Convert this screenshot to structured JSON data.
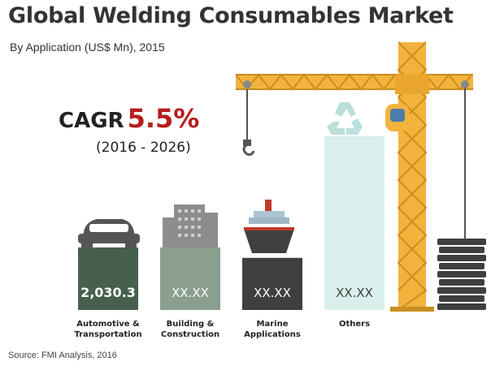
{
  "title": "Global Welding Consumables Market",
  "subtitle": "By Application (US$ Mn), 2015",
  "cagr": {
    "label": "CAGR",
    "value": "5.5%",
    "period": "(2016 - 2026)"
  },
  "source": "Source: FMI Analysis, 2016",
  "colors": {
    "automotive": "#46604d",
    "building": "#8a9f8d",
    "marine": "#3f3f3f",
    "others": "#d9efeb",
    "crane": "#f2b33d",
    "cagr_accent": "#b71c1c"
  },
  "icons": [
    "car-icon",
    "buildings-icon",
    "ship-icon",
    "recycle-icon",
    "crane-icon",
    "steel-stack-icon"
  ],
  "chart_data": {
    "type": "bar",
    "title": "Global Welding Consumables Market",
    "subtitle": "By Application (US$ Mn), 2015",
    "categories": [
      [
        "Automotive &",
        "Transportation"
      ],
      [
        "Building &",
        "Construction"
      ],
      [
        "Marine",
        "Applications"
      ],
      [
        "Others"
      ]
    ],
    "values": [
      2030.3,
      null,
      null,
      null
    ],
    "value_labels": [
      "2,030.3",
      "XX.XX",
      "XX.XX",
      "XX.XX"
    ],
    "relative_heights": [
      0.36,
      0.36,
      0.3,
      1.0
    ],
    "grid": false,
    "legend": "none"
  }
}
